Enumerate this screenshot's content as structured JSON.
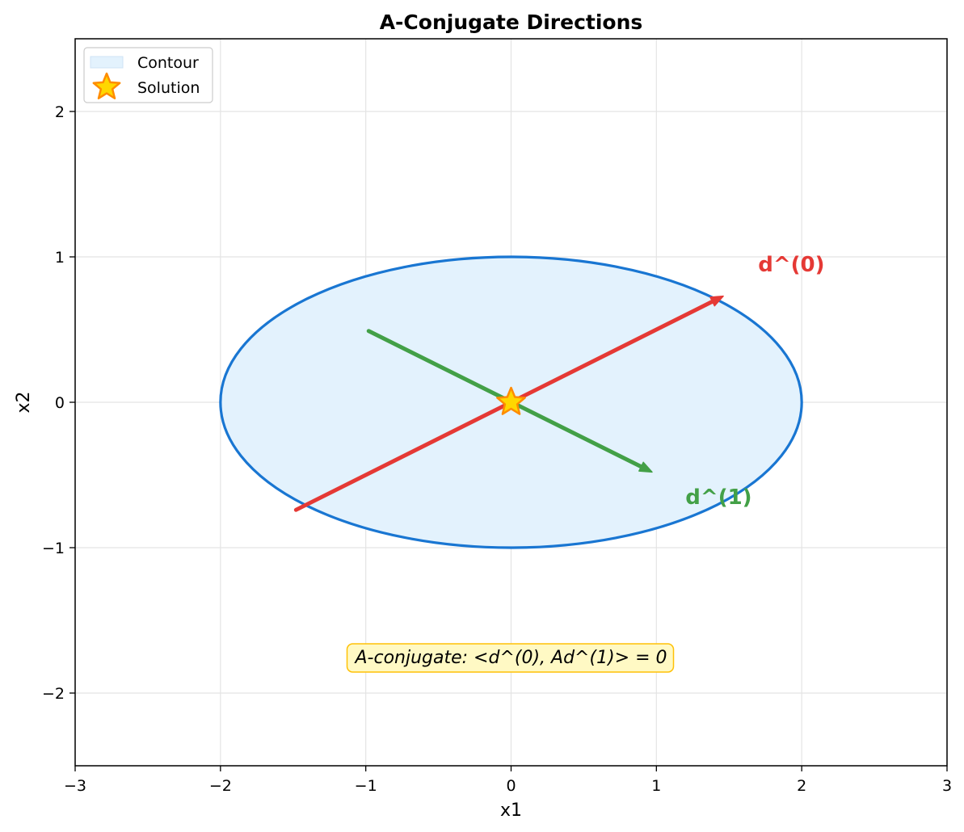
{
  "chart_data": {
    "type": "scatter",
    "title": "A-Conjugate Directions",
    "xlabel": "x1",
    "ylabel": "x2",
    "xlim": [
      -3,
      3
    ],
    "ylim": [
      -2.5,
      2.5
    ],
    "x_ticks": [
      -3,
      -2,
      -1,
      0,
      1,
      2,
      3
    ],
    "y_ticks": [
      -2,
      -1,
      0,
      1,
      2
    ],
    "x_tick_labels": [
      "−3",
      "−2",
      "−1",
      "0",
      "1",
      "2",
      "3"
    ],
    "y_tick_labels": [
      "−2",
      "−1",
      "0",
      "1",
      "2"
    ],
    "grid": true,
    "legend_position": "upper-left",
    "legend": [
      {
        "label": "Contour",
        "marker": "patch",
        "color": "#e3f2fd"
      },
      {
        "label": "Solution",
        "marker": "star",
        "color": "#ffd700"
      }
    ],
    "contour": {
      "center": [
        0,
        0
      ],
      "semi_axis_x": 2,
      "semi_axis_y": 1,
      "fill": "#e3f2fd",
      "edge": "#1976d2"
    },
    "solution": {
      "x": 0,
      "y": 0,
      "fill": "#ffd700",
      "edge": "#ff8c00"
    },
    "vectors": [
      {
        "name": "d0",
        "label": "d^(0)",
        "from": [
          -1.48,
          -0.74
        ],
        "to": [
          1.46,
          0.73
        ],
        "color": "#e53935",
        "label_at": [
          1.7,
          0.95
        ]
      },
      {
        "name": "d1",
        "label": "d^(1)",
        "from": [
          -0.98,
          0.49
        ],
        "to": [
          0.97,
          -0.48
        ],
        "color": "#43a047",
        "label_at": [
          1.2,
          -0.65
        ]
      }
    ],
    "annotation": {
      "text": "A-conjugate: <d^(0), Ad^(1)> = 0",
      "x": 0,
      "y": -1.75,
      "bg": "#fff9c4",
      "border": "#ffc107"
    }
  }
}
